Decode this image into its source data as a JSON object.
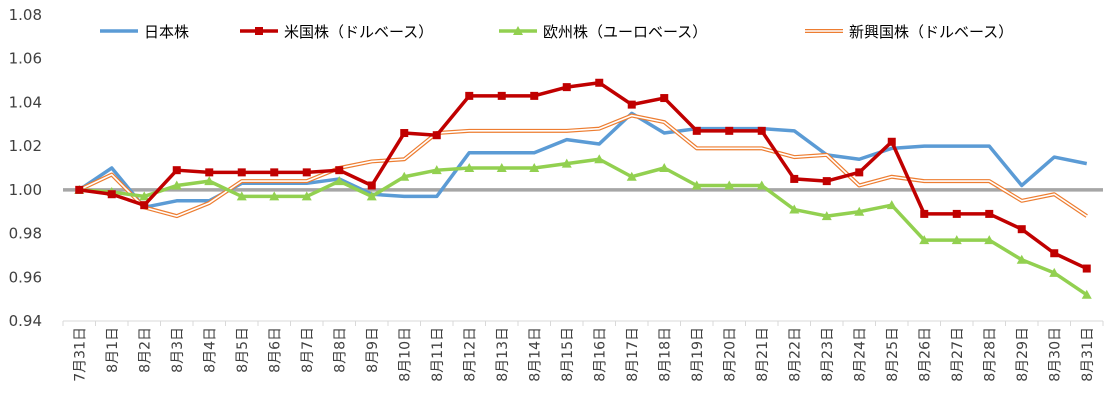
{
  "chart_data": {
    "type": "line",
    "title": "",
    "xlabel": "",
    "ylabel": "",
    "ylim": [
      0.94,
      1.08
    ],
    "yticks": [
      "0.94",
      "0.96",
      "0.98",
      "1.00",
      "1.02",
      "1.04",
      "1.06",
      "1.08"
    ],
    "categories": [
      "7月31日",
      "8月1日",
      "8月2日",
      "8月3日",
      "8月4日",
      "8月5日",
      "8月6日",
      "8月7日",
      "8月8日",
      "8月9日",
      "8月10日",
      "8月11日",
      "8月12日",
      "8月13日",
      "8月14日",
      "8月15日",
      "8月16日",
      "8月17日",
      "8月18日",
      "8月19日",
      "8月20日",
      "8月21日",
      "8月22日",
      "8月23日",
      "8月24日",
      "8月25日",
      "8月26日",
      "8月27日",
      "8月28日",
      "8月29日",
      "8月30日",
      "8月31日"
    ],
    "baseline": 1.0,
    "baseline_color": "#a6a6a6",
    "legend_position": "top",
    "grid": false,
    "series": [
      {
        "name": "日本株",
        "color": "#5b9bd5",
        "style": "plain",
        "values": [
          1.0,
          1.01,
          0.992,
          0.995,
          0.995,
          1.003,
          1.003,
          1.003,
          1.005,
          0.998,
          0.997,
          0.997,
          1.017,
          1.017,
          1.017,
          1.023,
          1.021,
          1.035,
          1.026,
          1.028,
          1.028,
          1.028,
          1.027,
          1.016,
          1.014,
          1.019,
          1.02,
          1.02,
          1.02,
          1.002,
          1.015,
          1.012
        ]
      },
      {
        "name": "米国株（ドルベース）",
        "color": "#c00000",
        "style": "square",
        "values": [
          1.0,
          0.998,
          0.993,
          1.009,
          1.008,
          1.008,
          1.008,
          1.008,
          1.009,
          1.002,
          1.026,
          1.025,
          1.043,
          1.043,
          1.043,
          1.047,
          1.049,
          1.039,
          1.042,
          1.027,
          1.027,
          1.027,
          1.005,
          1.004,
          1.008,
          1.022,
          0.989,
          0.989,
          0.989,
          0.982,
          0.971,
          0.964
        ]
      },
      {
        "name": "欧州株（ユーロベース）",
        "color": "#92d050",
        "style": "triangle",
        "values": [
          1.0,
          0.999,
          0.997,
          1.002,
          1.004,
          0.997,
          0.997,
          0.997,
          1.004,
          0.997,
          1.006,
          1.009,
          1.01,
          1.01,
          1.01,
          1.012,
          1.014,
          1.006,
          1.01,
          1.002,
          1.002,
          1.002,
          0.991,
          0.988,
          0.99,
          0.993,
          0.977,
          0.977,
          0.977,
          0.968,
          0.962,
          0.952
        ]
      },
      {
        "name": "新興国株（ドルベース）",
        "color": "#ed7d31",
        "style": "double",
        "values": [
          1.0,
          1.007,
          0.992,
          0.988,
          0.994,
          1.004,
          1.004,
          1.004,
          1.01,
          1.013,
          1.014,
          1.026,
          1.027,
          1.027,
          1.027,
          1.027,
          1.028,
          1.034,
          1.031,
          1.019,
          1.019,
          1.019,
          1.015,
          1.016,
          1.002,
          1.006,
          1.004,
          1.004,
          1.004,
          0.995,
          0.998,
          0.988
        ]
      }
    ]
  }
}
